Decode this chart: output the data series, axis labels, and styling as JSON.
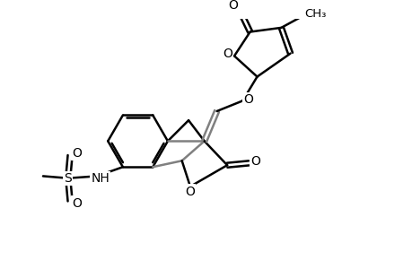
{
  "bg_color": "#ffffff",
  "line_color": "#000000",
  "gray_color": "#808080",
  "line_width": 1.8,
  "figsize": [
    4.6,
    3.0
  ],
  "dpi": 100,
  "xlim": [
    0,
    9.2
  ],
  "ylim": [
    0,
    6.0
  ]
}
